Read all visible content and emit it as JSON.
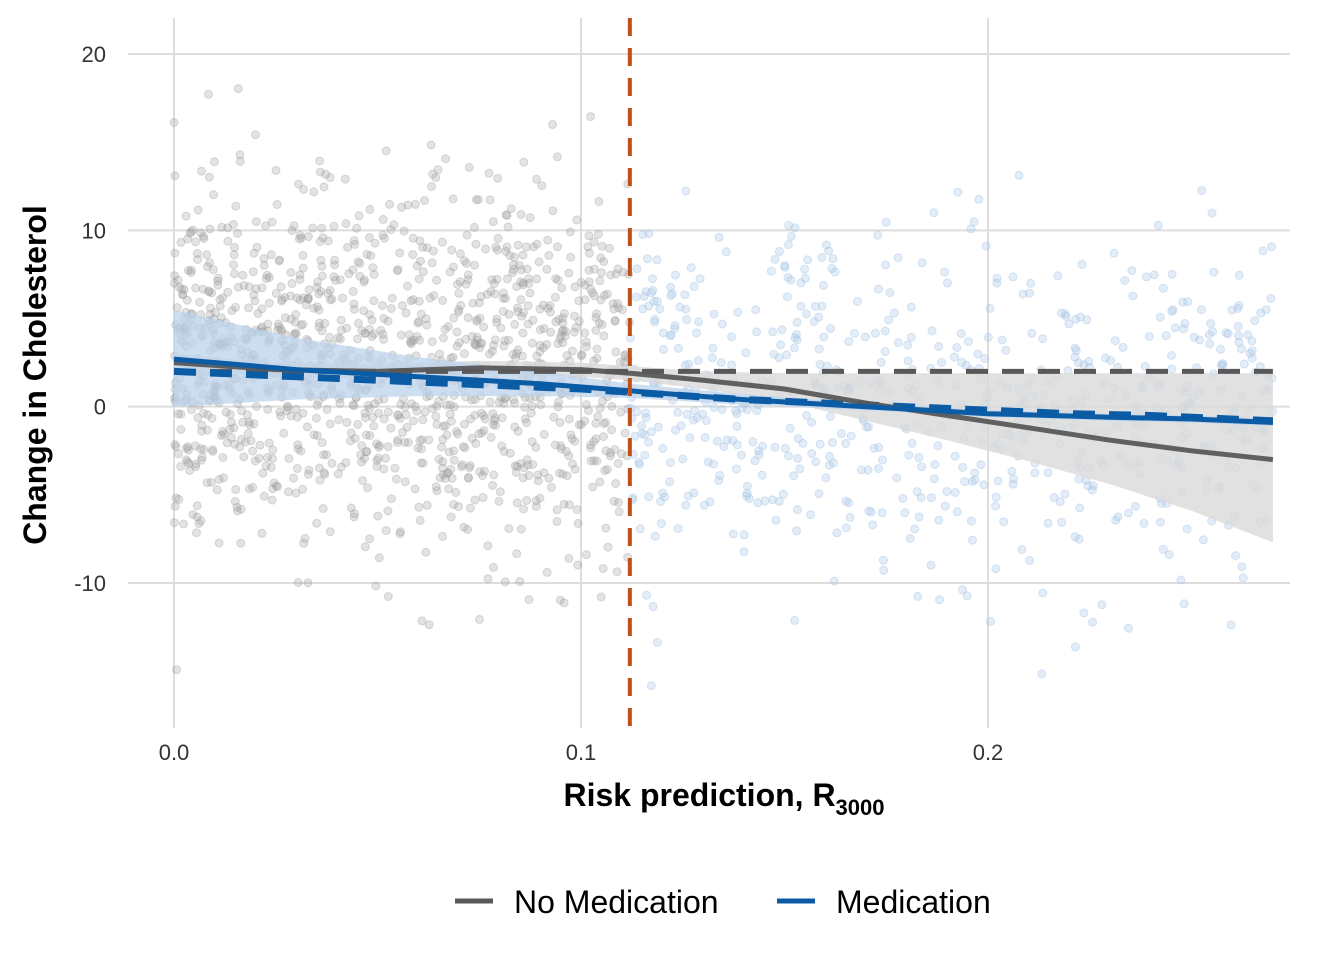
{
  "chart_data": {
    "type": "scatter",
    "title": "",
    "xlabel": "Risk prediction, R",
    "xlabel_subscript": "3000",
    "ylabel": "Change in Cholesterol",
    "xlim": [
      -0.0,
      0.27
    ],
    "ylim": [
      -18,
      22
    ],
    "x_ticks": [
      0.0,
      0.1,
      0.2
    ],
    "x_tick_labels": [
      "0.0",
      "0.1",
      "0.2"
    ],
    "y_ticks": [
      20,
      10,
      0,
      -10
    ],
    "y_tick_labels": [
      "20",
      "10",
      "0",
      "-10"
    ],
    "grid": true,
    "legend_position": "bottom",
    "threshold_x": 0.112,
    "colors": {
      "no_medication": "#595959",
      "medication": "#0b5ba5",
      "threshold": "#c0501a",
      "no_med_points": "#9a9a9a",
      "med_points": "#a9c6e6",
      "no_med_band": "#d9d9d9",
      "med_band": "#bdd3ec",
      "grid": "#dddddd"
    },
    "series": [
      {
        "name": "No Medication",
        "color": "#595959",
        "point_x_range": [
          0.0,
          0.112
        ],
        "smooth": {
          "x": [
            0.0,
            0.025,
            0.05,
            0.075,
            0.1,
            0.112,
            0.13,
            0.15,
            0.17,
            0.19,
            0.21,
            0.23,
            0.25,
            0.27
          ],
          "y": [
            2.5,
            2.1,
            2.0,
            2.2,
            2.1,
            1.9,
            1.5,
            1.0,
            0.2,
            -0.5,
            -1.2,
            -1.9,
            -2.5,
            -3.0
          ],
          "lower": [
            2.0,
            1.7,
            1.6,
            1.8,
            1.7,
            1.5,
            1.0,
            0.3,
            -0.8,
            -1.9,
            -3.1,
            -4.4,
            -5.9,
            -7.7
          ],
          "upper": [
            3.0,
            2.5,
            2.4,
            2.6,
            2.5,
            2.3,
            2.0,
            1.9,
            1.9,
            1.9,
            1.9,
            1.9,
            1.9,
            1.9
          ]
        },
        "reference_line": {
          "x": [
            0.0,
            0.27
          ],
          "y": [
            2.0,
            2.0
          ]
        }
      },
      {
        "name": "Medication",
        "color": "#0b5ba5",
        "point_x_range": [
          0.112,
          0.27
        ],
        "smooth": {
          "x": [
            0.0,
            0.03,
            0.06,
            0.09,
            0.112,
            0.14,
            0.17,
            0.2,
            0.23,
            0.25,
            0.27
          ],
          "y": [
            2.7,
            2.1,
            1.7,
            1.3,
            0.9,
            0.4,
            0.0,
            -0.4,
            -0.6,
            -0.7,
            -0.9
          ],
          "lower": [
            0.0,
            0.4,
            0.6,
            0.6,
            0.5,
            0.1,
            -0.2,
            -0.6,
            -0.8,
            -0.9,
            -1.1
          ],
          "upper": [
            5.5,
            3.9,
            2.8,
            2.0,
            1.3,
            0.7,
            0.2,
            -0.2,
            -0.4,
            -0.5,
            -0.7
          ]
        },
        "reference_line": {
          "x": [
            0.0,
            0.02,
            0.04,
            0.06,
            0.08,
            0.1,
            0.12,
            0.14,
            0.16,
            0.18,
            0.2,
            0.22,
            0.24,
            0.27
          ],
          "y": [
            2.0,
            1.8,
            1.6,
            1.4,
            1.2,
            1.0,
            0.7,
            0.4,
            0.2,
            0.0,
            -0.2,
            -0.4,
            -0.5,
            -0.8
          ]
        }
      }
    ]
  },
  "legend": {
    "items": [
      {
        "label": "No Medication",
        "color": "#595959"
      },
      {
        "label": "Medication",
        "color": "#0b5ba5"
      }
    ]
  }
}
